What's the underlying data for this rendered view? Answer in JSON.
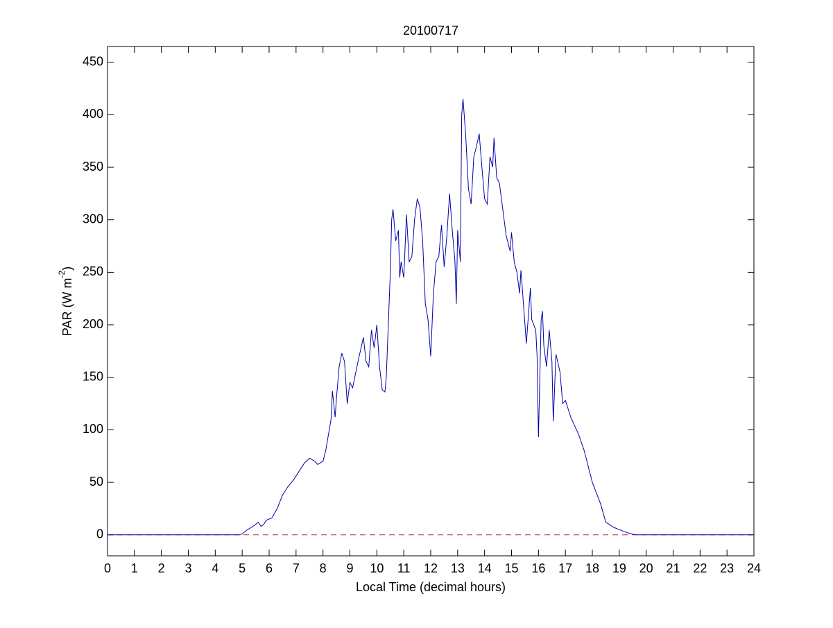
{
  "chart_data": {
    "type": "line",
    "title": "20100717",
    "xlabel": "Local Time (decimal hours)",
    "ylabel": [
      "PAR (W m",
      "-2",
      ")"
    ],
    "xlim": [
      0,
      24
    ],
    "ylim": [
      -20,
      465
    ],
    "xticks": [
      0,
      1,
      2,
      3,
      4,
      5,
      6,
      7,
      8,
      9,
      10,
      11,
      12,
      13,
      14,
      15,
      16,
      17,
      18,
      19,
      20,
      21,
      22,
      23,
      24
    ],
    "yticks": [
      0,
      50,
      100,
      150,
      200,
      250,
      300,
      350,
      400,
      450
    ],
    "grid": false,
    "hline": {
      "value": 0,
      "color": "#cc2222",
      "style": "dashed"
    },
    "series": [
      {
        "color": "#0000aa",
        "x": [
          0,
          4.9,
          5.0,
          5.2,
          5.4,
          5.6,
          5.7,
          5.8,
          5.9,
          6.1,
          6.3,
          6.5,
          6.7,
          6.9,
          7.1,
          7.3,
          7.5,
          7.7,
          7.8,
          8.0,
          8.1,
          8.3,
          8.35,
          8.45,
          8.5,
          8.6,
          8.7,
          8.8,
          8.9,
          9.0,
          9.1,
          9.3,
          9.5,
          9.6,
          9.7,
          9.8,
          9.9,
          10.0,
          10.1,
          10.2,
          10.3,
          10.35,
          10.5,
          10.55,
          10.6,
          10.7,
          10.8,
          10.85,
          10.9,
          11.0,
          11.1,
          11.2,
          11.3,
          11.4,
          11.5,
          11.6,
          11.7,
          11.8,
          11.9,
          12.0,
          12.1,
          12.2,
          12.3,
          12.4,
          12.5,
          12.6,
          12.7,
          12.8,
          12.9,
          12.95,
          13.0,
          13.1,
          13.15,
          13.2,
          13.3,
          13.4,
          13.5,
          13.6,
          13.7,
          13.8,
          13.9,
          14.0,
          14.1,
          14.2,
          14.3,
          14.35,
          14.45,
          14.55,
          14.65,
          14.8,
          14.95,
          15.0,
          15.1,
          15.2,
          15.3,
          15.35,
          15.5,
          15.55,
          15.7,
          15.75,
          15.9,
          15.95,
          16.0,
          16.1,
          16.15,
          16.2,
          16.3,
          16.4,
          16.5,
          16.55,
          16.65,
          16.8,
          16.9,
          17.0,
          17.2,
          17.5,
          17.7,
          18.0,
          18.3,
          18.5,
          18.8,
          19.0,
          19.3,
          19.6,
          24
        ],
        "values": [
          0,
          0,
          1,
          5,
          8,
          12,
          8,
          10,
          14,
          16,
          25,
          38,
          46,
          52,
          60,
          68,
          73,
          70,
          67,
          70,
          80,
          110,
          137,
          112,
          130,
          160,
          173,
          165,
          125,
          145,
          140,
          165,
          188,
          165,
          160,
          195,
          178,
          200,
          160,
          138,
          136,
          150,
          250,
          300,
          310,
          280,
          290,
          245,
          260,
          245,
          305,
          260,
          265,
          300,
          320,
          312,
          280,
          220,
          205,
          170,
          230,
          260,
          265,
          295,
          255,
          285,
          325,
          290,
          260,
          220,
          290,
          260,
          400,
          415,
          380,
          330,
          315,
          360,
          370,
          382,
          350,
          320,
          315,
          360,
          350,
          378,
          340,
          335,
          315,
          285,
          270,
          288,
          260,
          250,
          230,
          252,
          200,
          182,
          235,
          205,
          195,
          170,
          93,
          205,
          213,
          180,
          160,
          195,
          165,
          108,
          172,
          155,
          125,
          128,
          112,
          95,
          80,
          50,
          30,
          12,
          7,
          5,
          2,
          0,
          0
        ]
      }
    ]
  }
}
